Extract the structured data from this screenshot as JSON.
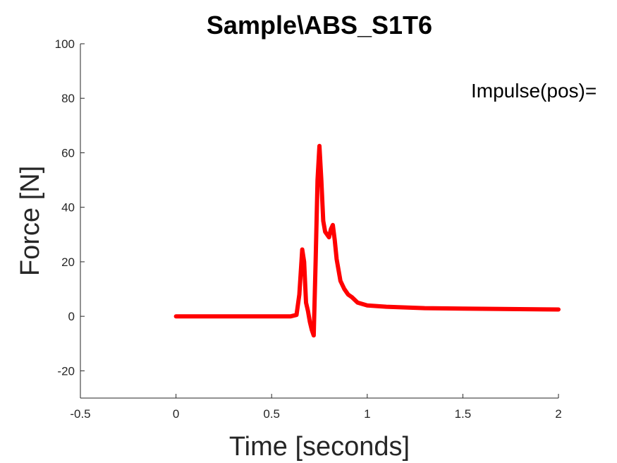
{
  "chart_data": {
    "type": "line",
    "title": "Sample\\ABS_S1T6",
    "xlabel": "Time [seconds]",
    "ylabel": "Force [N]",
    "xlim": [
      -0.5,
      2
    ],
    "ylim": [
      -30,
      100
    ],
    "xticks": [
      -0.5,
      0,
      0.5,
      1,
      1.5,
      2
    ],
    "xtick_labels": [
      "-0.5",
      "0",
      "0.5",
      "1",
      "1.5",
      "2"
    ],
    "yticks": [
      -20,
      0,
      20,
      40,
      60,
      80,
      100
    ],
    "ytick_labels": [
      "-20",
      "0",
      "20",
      "40",
      "60",
      "80",
      "100"
    ],
    "grid": false,
    "annotation": "Impulse(pos)=",
    "series": [
      {
        "color": "#ff0000",
        "x": [
          0,
          0.2,
          0.4,
          0.6,
          0.63,
          0.645,
          0.66,
          0.67,
          0.68,
          0.69,
          0.7,
          0.71,
          0.72,
          0.73,
          0.74,
          0.75,
          0.76,
          0.77,
          0.78,
          0.8,
          0.81,
          0.82,
          0.83,
          0.84,
          0.86,
          0.88,
          0.9,
          0.92,
          0.95,
          1.0,
          1.1,
          1.3,
          1.5,
          1.7,
          2.0
        ],
        "y": [
          0,
          0,
          0,
          0,
          0.5,
          8,
          24.5,
          20,
          5,
          2,
          -2,
          -5,
          -7,
          20,
          50,
          62.5,
          50,
          35,
          31,
          29,
          32,
          33.5,
          28,
          21,
          13,
          10,
          8,
          7,
          5,
          4,
          3.5,
          3,
          2.8,
          2.7,
          2.5
        ]
      }
    ]
  }
}
